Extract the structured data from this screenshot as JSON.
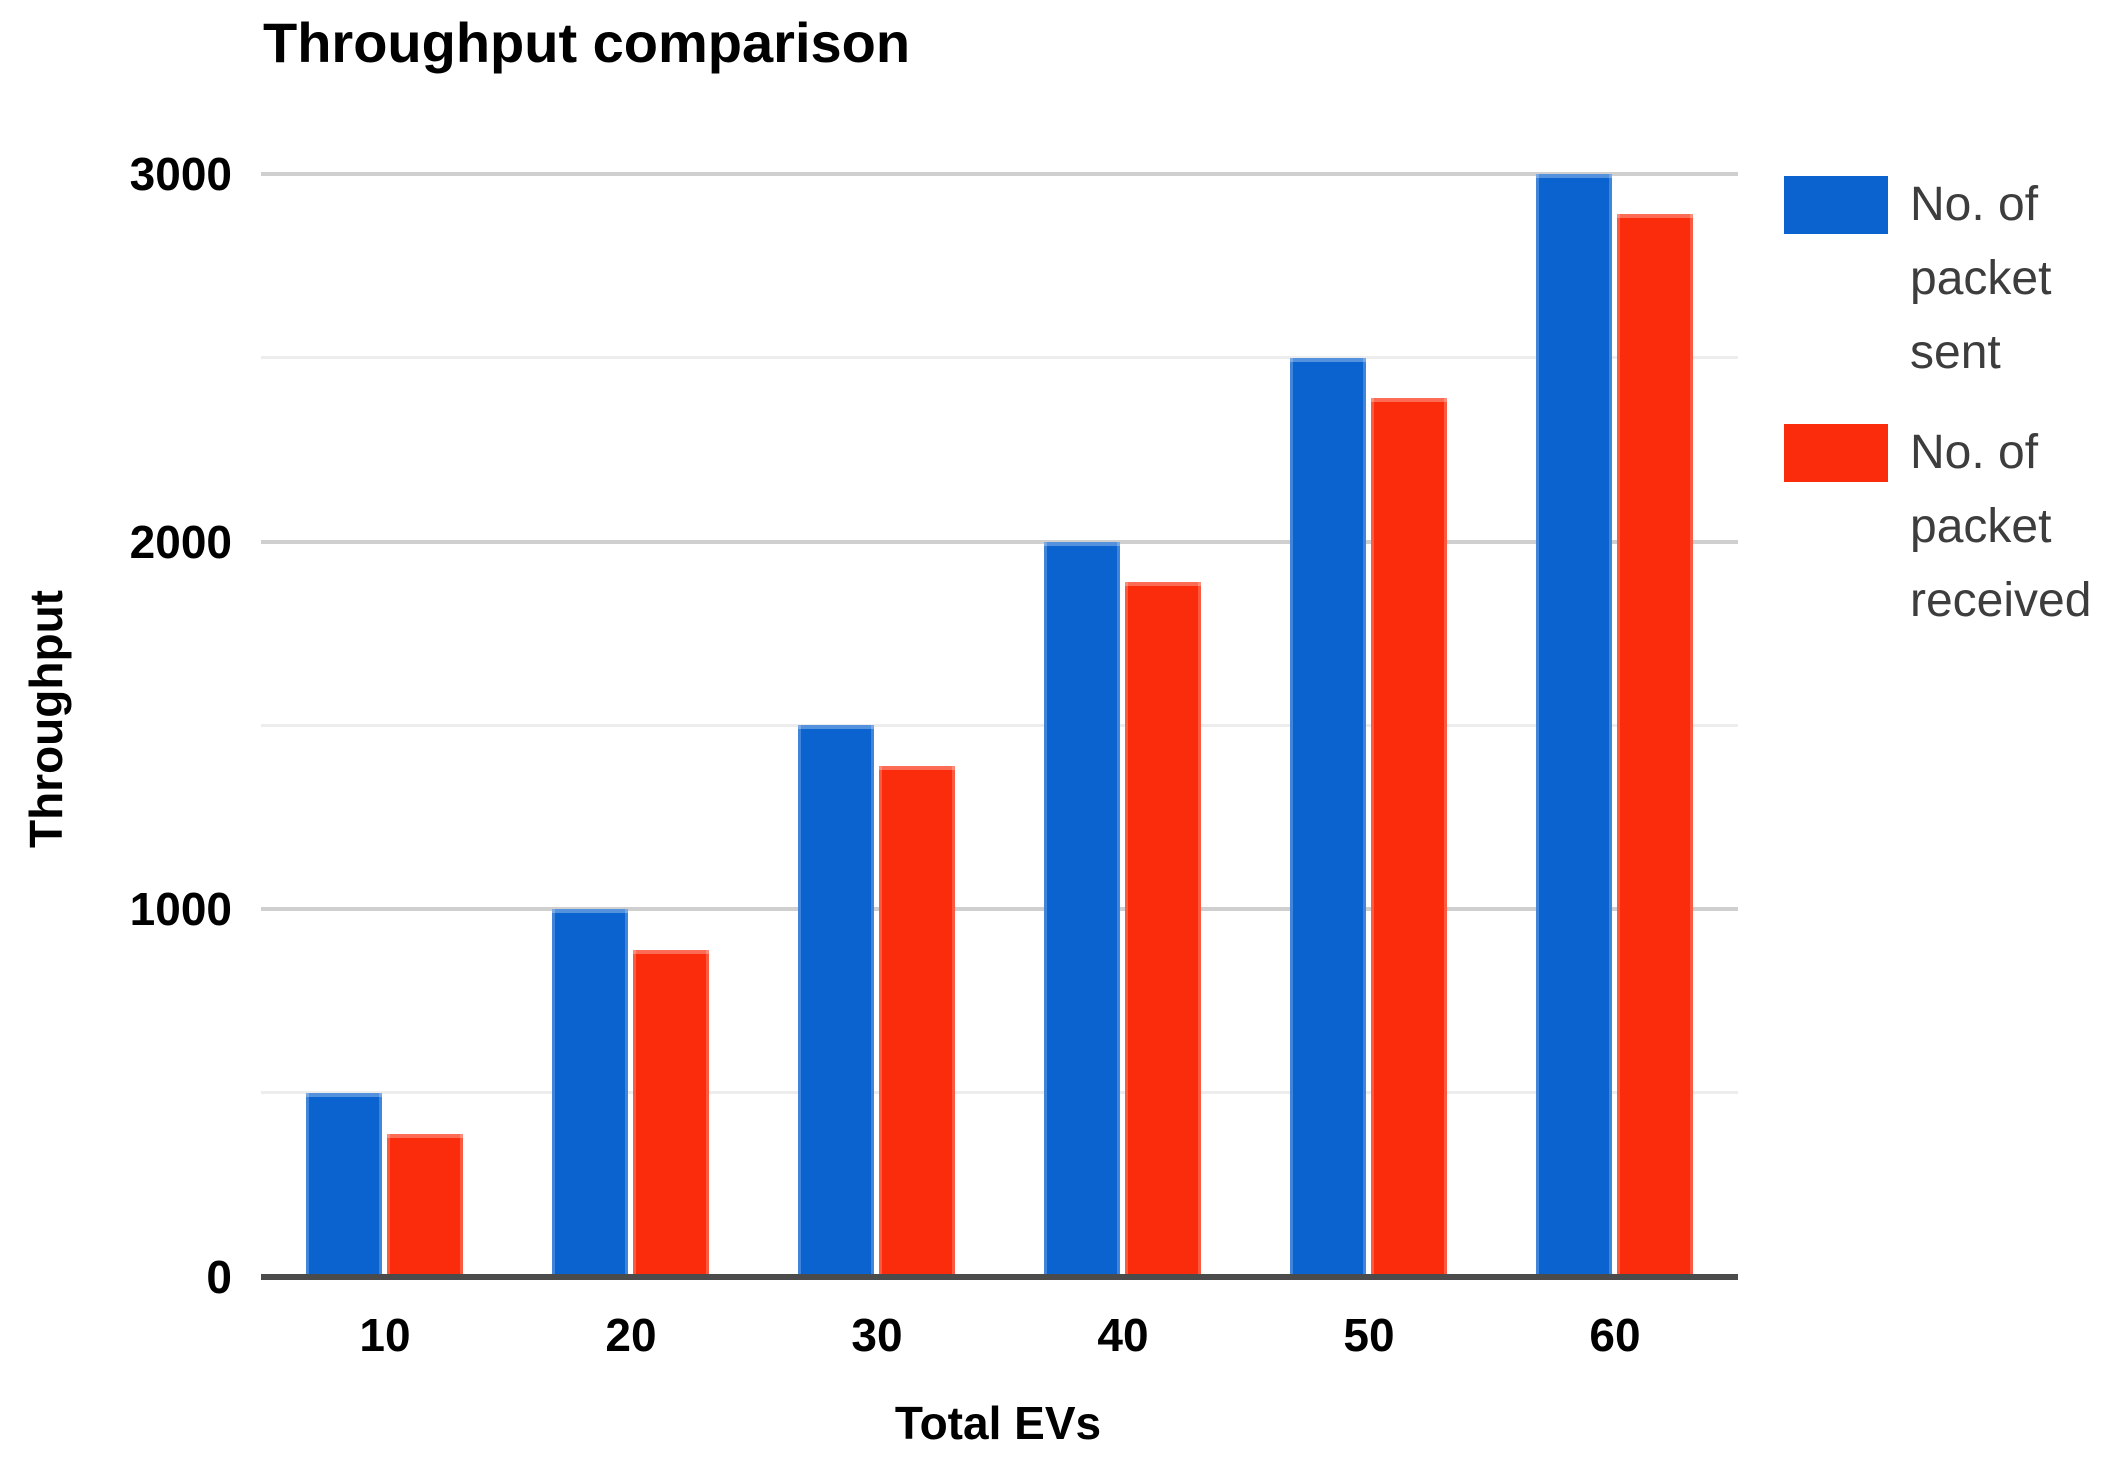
{
  "chart_data": {
    "type": "bar",
    "title": "Throughput comparison",
    "xlabel": "Total EVs",
    "ylabel": "Throughput",
    "categories": [
      "10",
      "20",
      "30",
      "40",
      "50",
      "60"
    ],
    "series": [
      {
        "key": "sent",
        "name": "No. of packet sent",
        "color": "#0b63cf",
        "values": [
          500,
          1000,
          1500,
          2000,
          2500,
          3000
        ]
      },
      {
        "key": "received",
        "name": "No. of packet received",
        "color": "#fb2c0b",
        "values": [
          390,
          890,
          1390,
          1890,
          2390,
          2890
        ]
      }
    ],
    "ylim": [
      0,
      3000
    ],
    "yticks": [
      {
        "label": "0",
        "value": 0
      },
      {
        "label": "1000",
        "value": 1000
      },
      {
        "label": "2000",
        "value": 2000
      },
      {
        "label": "3000",
        "value": 3000
      }
    ],
    "gridlines": {
      "major_values": [
        1000,
        2000,
        3000
      ],
      "minor_values": [
        500,
        1500,
        2500
      ]
    },
    "grid": "on",
    "legend_position": "right",
    "colors": {
      "series_sent": "#0b63cf",
      "series_received": "#fb2c0b",
      "gridline_major": "#cfcfcf",
      "gridline_minor": "#ededed",
      "axis_line": "#4b4b4b",
      "tick_text": "#000000",
      "legend_text": "#3d3d3d",
      "background": "#ffffff"
    }
  }
}
